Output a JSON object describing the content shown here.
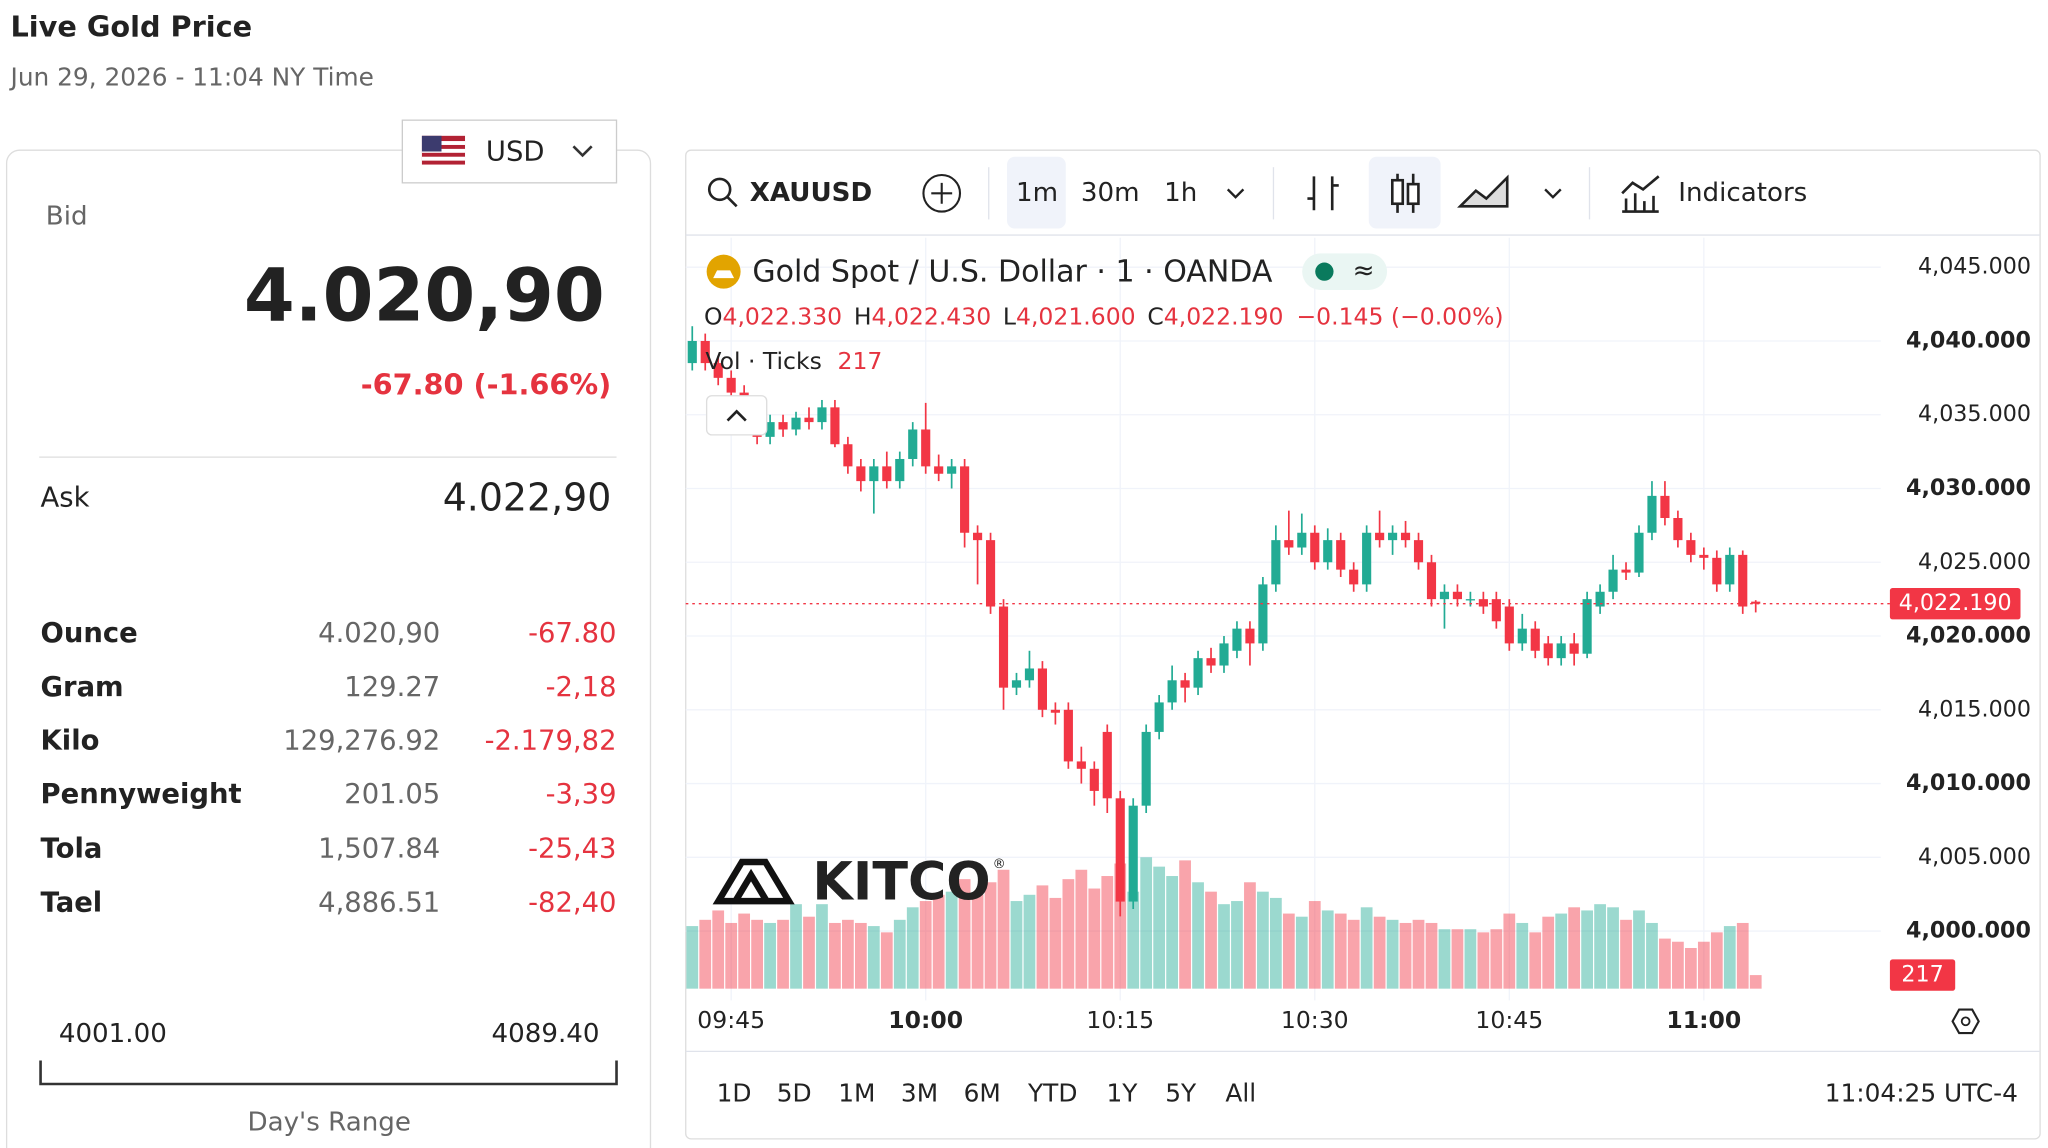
{
  "header": {
    "title": "Live Gold Price",
    "subtitle": "Jun 29, 2026 - 11:04 NY Time"
  },
  "currency": "USD",
  "quote": {
    "bid_label": "Bid",
    "bid": "4.020,90",
    "change": "-67.80 (-1.66%)",
    "ask_label": "Ask",
    "ask": "4.022,90"
  },
  "table": {
    "rows": [
      [
        "Ounce",
        "4.020,90",
        "-67.80"
      ],
      [
        "Gram",
        "129.27",
        "-2,18"
      ],
      [
        "Kilo",
        "129,276.92",
        "-2.179,82"
      ],
      [
        "Pennyweight",
        "201.05",
        "-3,39"
      ],
      [
        "Tola",
        "1,507.84",
        "-25,43"
      ],
      [
        "Tael",
        "4,886.51",
        "-82,40"
      ]
    ]
  },
  "range": {
    "low": "4001.00",
    "high": "4089.40",
    "label": "Day's Range"
  },
  "toolbar": {
    "symbol": "XAUUSD",
    "intervals": [
      "1m",
      "30m",
      "1h"
    ],
    "indicators": "Indicators"
  },
  "ranges": [
    "1D",
    "5D",
    "1M",
    "3M",
    "6M",
    "YTD",
    "1Y",
    "5Y",
    "All"
  ],
  "clock": "11:04:25 UTC-4",
  "logo": "KITCO",
  "chart_data": {
    "type": "candlestick",
    "title": "Gold Spot / U.S. Dollar · 1 · OANDA",
    "legend_keys": [
      "O",
      "H",
      "L",
      "C"
    ],
    "ohlc_labels": [
      "4,022.330",
      "4,022.430",
      "4,021.600",
      "4,022.190"
    ],
    "change_label": "−0.145 (−0.00%)",
    "volume_title": "Vol · Ticks",
    "last_price_label": "4,022.190",
    "up_color": "#22ab94",
    "down_color": "#f23645",
    "grid": true,
    "categories": [
      null,
      null,
      null,
      "09:45",
      null,
      null,
      null,
      null,
      null,
      null,
      null,
      null,
      null,
      null,
      null,
      null,
      null,
      null,
      "10:00",
      null,
      null,
      null,
      null,
      null,
      null,
      null,
      null,
      null,
      null,
      null,
      null,
      null,
      null,
      "10:15",
      null,
      null,
      null,
      null,
      null,
      null,
      null,
      null,
      null,
      null,
      null,
      null,
      null,
      null,
      "10:30",
      null,
      null,
      null,
      null,
      null,
      null,
      null,
      null,
      null,
      null,
      null,
      null,
      null,
      null,
      "10:45",
      null,
      null,
      null,
      null,
      null,
      null,
      null,
      null,
      null,
      null,
      null,
      null,
      null,
      null,
      "11:00",
      null,
      null,
      null,
      null
    ],
    "open": [
      4038.5,
      4040.0,
      4038.5,
      4037.5,
      4036.5,
      4034.5,
      4033.5,
      4034.5,
      4034.0,
      4034.8,
      4034.5,
      4035.5,
      4033.0,
      4031.5,
      4030.5,
      4031.5,
      4030.5,
      4032.0,
      4034.0,
      4031.5,
      4031.0,
      4031.5,
      4027.0,
      4026.5,
      4022.0,
      4016.5,
      4017.0,
      4017.8,
      4015.0,
      4015.0,
      4011.5,
      4011.0,
      4013.5,
      4009.0,
      4002.0,
      4008.5,
      4013.5,
      4015.5,
      4017.0,
      4016.5,
      4018.5,
      4018.0,
      4019.0,
      4020.5,
      4019.5,
      4023.5,
      4026.5,
      4026.0,
      4027.0,
      4025.0,
      4026.5,
      4024.5,
      4023.5,
      4027.0,
      4026.5,
      4027.0,
      4026.5,
      4025.0,
      4022.5,
      4023.0,
      4022.5,
      4022.5,
      4022.5,
      4022.0,
      4019.5,
      4020.5,
      4019.5,
      4018.5,
      4019.5,
      4018.8,
      4022.0,
      4023.0,
      4024.5,
      4024.3,
      4027.0,
      4029.5,
      4028.0,
      4026.5,
      4025.5,
      4025.3,
      4023.5,
      4025.5,
      4022.33
    ],
    "high": [
      4041.0,
      4040.5,
      4039.0,
      4038.0,
      4037.0,
      4035.0,
      4035.0,
      4035.0,
      4035.2,
      4035.5,
      4036.0,
      4036.0,
      4033.5,
      4032.0,
      4032.0,
      4032.5,
      4032.5,
      4034.5,
      4035.8,
      4032.3,
      4032.0,
      4032.0,
      4027.5,
      4027.0,
      4022.5,
      4017.5,
      4019.0,
      4018.3,
      4015.5,
      4015.5,
      4012.5,
      4011.5,
      4014.0,
      4009.5,
      4009.0,
      4014.0,
      4016.0,
      4018.0,
      4017.5,
      4019.0,
      4019.2,
      4020.0,
      4021.0,
      4021.0,
      4024.0,
      4027.5,
      4028.5,
      4028.3,
      4027.5,
      4027.3,
      4027.0,
      4025.0,
      4027.5,
      4028.5,
      4027.5,
      4027.8,
      4027.0,
      4025.5,
      4023.5,
      4023.5,
      4023.0,
      4023.0,
      4023.0,
      4022.5,
      4021.5,
      4021.0,
      4020.0,
      4020.0,
      4020.2,
      4023.0,
      4023.5,
      4025.5,
      4025.0,
      4027.5,
      4030.5,
      4030.5,
      4028.5,
      4027.0,
      4026.0,
      4025.8,
      4026.0,
      4025.8,
      4022.43
    ],
    "low": [
      4038.0,
      4038.0,
      4037.0,
      4036.0,
      4034.0,
      4033.0,
      4033.0,
      4033.5,
      4033.6,
      4034.0,
      4034.0,
      4032.8,
      4031.0,
      4029.8,
      4028.3,
      4030.0,
      4030.0,
      4031.5,
      4031.0,
      4030.5,
      4030.0,
      4026.0,
      4023.5,
      4021.5,
      4015.0,
      4016.0,
      4016.5,
      4014.5,
      4014.0,
      4011.0,
      4010.0,
      4008.5,
      4008.0,
      4001.0,
      4001.5,
      4008.0,
      4013.0,
      4015.0,
      4015.5,
      4016.0,
      4017.5,
      4017.5,
      4018.5,
      4018.0,
      4019.0,
      4023.0,
      4025.5,
      4025.5,
      4024.5,
      4024.5,
      4024.0,
      4023.0,
      4023.0,
      4026.0,
      4025.5,
      4026.0,
      4024.5,
      4022.0,
      4020.5,
      4022.0,
      4022.0,
      4021.5,
      4020.5,
      4019.0,
      4019.0,
      4018.5,
      4018.0,
      4018.0,
      4018.0,
      4018.5,
      4021.5,
      4022.5,
      4023.8,
      4024.0,
      4026.5,
      4027.5,
      4026.0,
      4025.0,
      4024.5,
      4023.0,
      4023.0,
      4021.5,
      4021.6
    ],
    "close": [
      4040.0,
      4038.5,
      4037.5,
      4036.5,
      4034.5,
      4033.5,
      4034.5,
      4034.0,
      4034.8,
      4034.5,
      4035.5,
      4033.0,
      4031.5,
      4030.5,
      4031.5,
      4030.5,
      4032.0,
      4034.0,
      4031.5,
      4031.0,
      4031.5,
      4027.0,
      4026.5,
      4022.0,
      4016.5,
      4017.0,
      4017.8,
      4015.0,
      4014.8,
      4011.5,
      4011.0,
      4009.5,
      4009.0,
      4002.0,
      4008.5,
      4013.5,
      4015.5,
      4017.0,
      4016.5,
      4018.5,
      4018.0,
      4019.5,
      4020.5,
      4019.5,
      4023.5,
      4026.5,
      4026.0,
      4027.0,
      4025.0,
      4026.5,
      4024.5,
      4023.5,
      4027.0,
      4026.5,
      4027.0,
      4026.5,
      4025.0,
      4022.5,
      4023.0,
      4022.5,
      4022.5,
      4022.0,
      4021.0,
      4019.5,
      4020.5,
      4019.0,
      4018.5,
      4019.5,
      4018.8,
      4022.5,
      4023.0,
      4024.5,
      4024.3,
      4027.0,
      4029.5,
      4028.0,
      4026.5,
      4025.5,
      4025.3,
      4023.5,
      4025.5,
      4022.0,
      4022.19
    ],
    "volume": [
      1000,
      1100,
      1250,
      1050,
      1200,
      1100,
      1050,
      1100,
      1350,
      1150,
      1350,
      1050,
      1100,
      1050,
      1000,
      900,
      1100,
      1300,
      1400,
      1500,
      1550,
      1750,
      1500,
      1700,
      1900,
      1400,
      1500,
      1650,
      1450,
      1750,
      1900,
      1600,
      1800,
      2000,
      1550,
      2100,
      1950,
      1800,
      2050,
      1700,
      1550,
      1350,
      1400,
      1700,
      1550,
      1450,
      1200,
      1150,
      1400,
      1250,
      1200,
      1100,
      1300,
      1150,
      1100,
      1050,
      1100,
      1050,
      950,
      950,
      950,
      900,
      950,
      1200,
      1050,
      900,
      1150,
      1200,
      1300,
      1250,
      1350,
      1300,
      1100,
      1250,
      1050,
      800,
      750,
      650,
      750,
      900,
      1000,
      1050,
      217
    ],
    "ylim": [
      3995.3,
      4047.0
    ],
    "yticks": [
      {
        "value": 4000,
        "label": "4,000.000"
      },
      {
        "value": 4005,
        "label": "4,005.000"
      },
      {
        "value": 4010,
        "label": "4,010.000"
      },
      {
        "value": 4015,
        "label": "4,015.000"
      },
      {
        "value": 4020,
        "label": "4,020.000"
      },
      {
        "value": 4025,
        "label": "4,025.000"
      },
      {
        "value": 4030,
        "label": "4,030.000"
      },
      {
        "value": 4035,
        "label": "4,035.000"
      },
      {
        "value": 4040,
        "label": "4,040.000"
      },
      {
        "value": 4045,
        "label": "4,045.000"
      }
    ],
    "y2lim": [
      0,
      12000
    ]
  }
}
